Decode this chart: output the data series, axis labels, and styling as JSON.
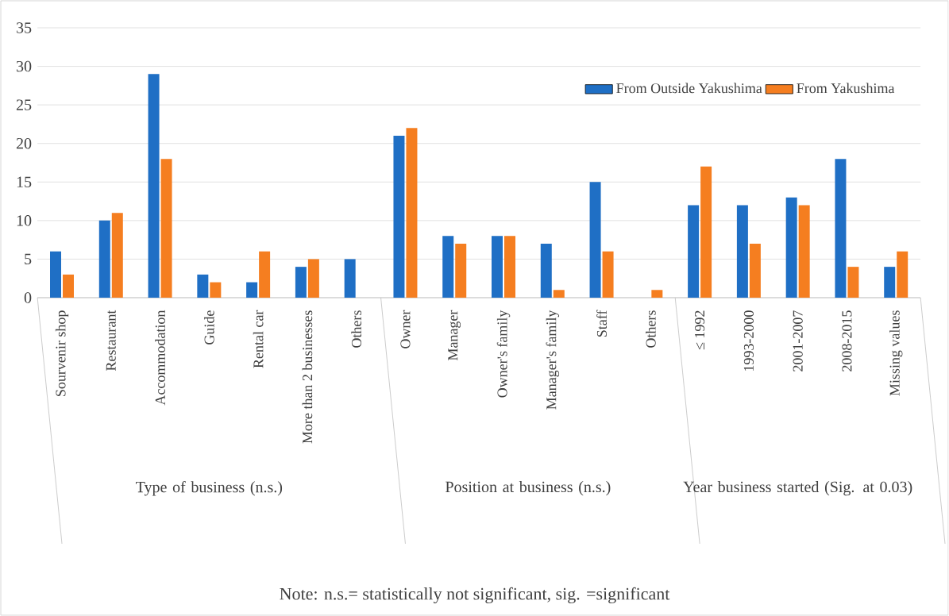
{
  "chart_data": {
    "type": "bar",
    "categories": [
      "Sourvenir shop",
      "Restaurant",
      "Accommodation",
      "Guide",
      "Rental car",
      "More than 2 businesses",
      "Others",
      "Owner",
      "Manager",
      "Owner's family",
      "Manager's family",
      "Staff",
      "Others",
      "≤ 1992",
      "1993-2000",
      "2001-2007",
      "2008-2015",
      "Missing values"
    ],
    "series": [
      {
        "name": "From Outside Yakushima",
        "color": "#1f6fc5",
        "values": [
          6,
          10,
          29,
          3,
          2,
          4,
          5,
          21,
          8,
          8,
          7,
          15,
          0,
          12,
          12,
          13,
          18,
          4
        ]
      },
      {
        "name": "From Yakushima",
        "color": "#f57e20",
        "values": [
          3,
          11,
          18,
          2,
          6,
          5,
          0,
          22,
          7,
          8,
          1,
          6,
          1,
          17,
          7,
          12,
          4,
          6
        ]
      }
    ],
    "ylim": [
      0,
      35
    ],
    "yticks": [
      0,
      5,
      10,
      15,
      20,
      25,
      30,
      35
    ],
    "grid": "y",
    "legend": "top right",
    "annotations": [
      "Type of business (n.s.)",
      "Position at business (n.s.)",
      "Year business started (Sig. at 0.03)",
      "Note: n.s.= statistically not significant, sig. =significant"
    ]
  }
}
